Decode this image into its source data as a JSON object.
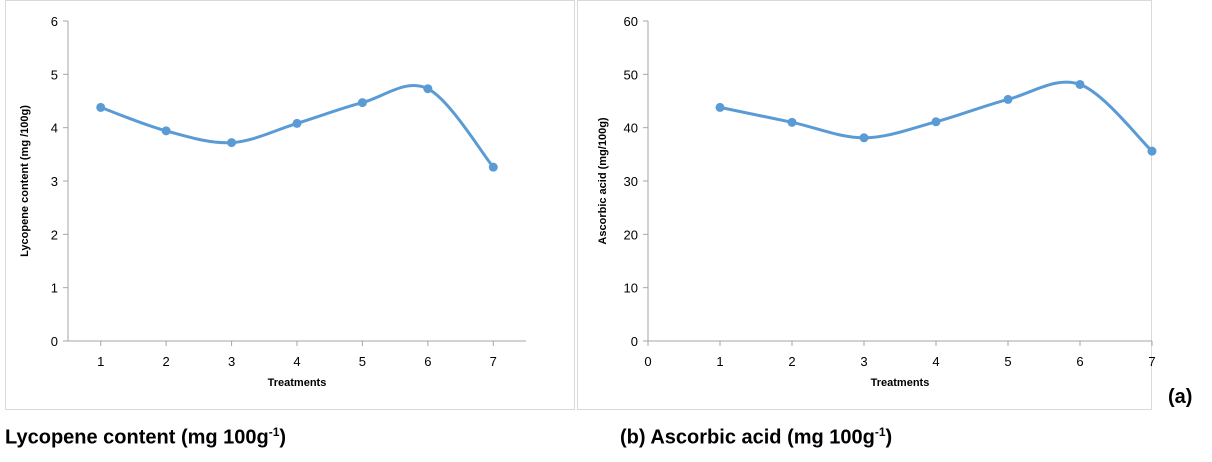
{
  "chart_data": [
    {
      "type": "line",
      "xlabel": "Treatments",
      "ylabel": "Lycopene content (mg /100g)",
      "x": [
        1,
        2,
        3,
        4,
        5,
        6,
        7
      ],
      "values": [
        4.38,
        3.94,
        3.72,
        4.08,
        4.47,
        4.73,
        3.26
      ],
      "xticks": [
        "1",
        "2",
        "3",
        "4",
        "5",
        "6",
        "7"
      ],
      "yticks": [
        "0",
        "1",
        "2",
        "3",
        "4",
        "5",
        "6"
      ],
      "xlim": [
        0.5,
        7.5
      ],
      "ylim": [
        0,
        6
      ],
      "grid": false,
      "smooth": true,
      "color": "#5b9bd5"
    },
    {
      "type": "line",
      "xlabel": "Treatments",
      "ylabel": "Ascorbic acid (mg/100g)",
      "x": [
        1,
        2,
        3,
        4,
        5,
        6,
        7
      ],
      "values": [
        43.8,
        41.0,
        38.1,
        41.1,
        45.3,
        48.1,
        35.6
      ],
      "xticks": [
        "0",
        "1",
        "2",
        "3",
        "4",
        "5",
        "6",
        "7"
      ],
      "yticks": [
        "0",
        "10",
        "20",
        "30",
        "40",
        "50",
        "60"
      ],
      "xlim": [
        0,
        7
      ],
      "ylim": [
        0,
        60
      ],
      "grid": false,
      "smooth": true,
      "color": "#5b9bd5"
    }
  ],
  "captions": {
    "a_text": "Lycopene content (mg 100g",
    "b_text": "(b) Ascorbic acid (mg 100g",
    "sup": "-1",
    "close": ")",
    "label_a": "(a)"
  }
}
